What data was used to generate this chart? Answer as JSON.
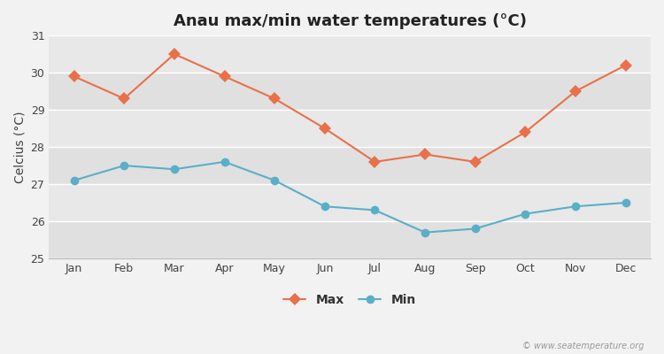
{
  "title": "Anau max/min water temperatures (°C)",
  "ylabel": "Celcius (°C)",
  "months": [
    "Jan",
    "Feb",
    "Mar",
    "Apr",
    "May",
    "Jun",
    "Jul",
    "Aug",
    "Sep",
    "Oct",
    "Nov",
    "Dec"
  ],
  "max_values": [
    29.9,
    29.3,
    30.5,
    29.9,
    29.3,
    28.5,
    27.6,
    27.8,
    27.6,
    28.4,
    29.5,
    30.2
  ],
  "min_values": [
    27.1,
    27.5,
    27.4,
    27.6,
    27.1,
    26.4,
    26.3,
    25.7,
    25.8,
    26.2,
    26.4,
    26.5
  ],
  "max_color": "#e8714a",
  "min_color": "#5aafc8",
  "ylim": [
    25,
    31
  ],
  "yticks": [
    25,
    26,
    27,
    28,
    29,
    30,
    31
  ],
  "band_colors": [
    "#e8e8e8",
    "#ebebeb"
  ],
  "outer_bg": "#f2f2f2",
  "grid_line_color": "#ffffff",
  "title_fontsize": 13,
  "label_fontsize": 10,
  "tick_fontsize": 9,
  "legend_labels": [
    "Max",
    "Min"
  ],
  "watermark": "© www.seatemperature.org"
}
